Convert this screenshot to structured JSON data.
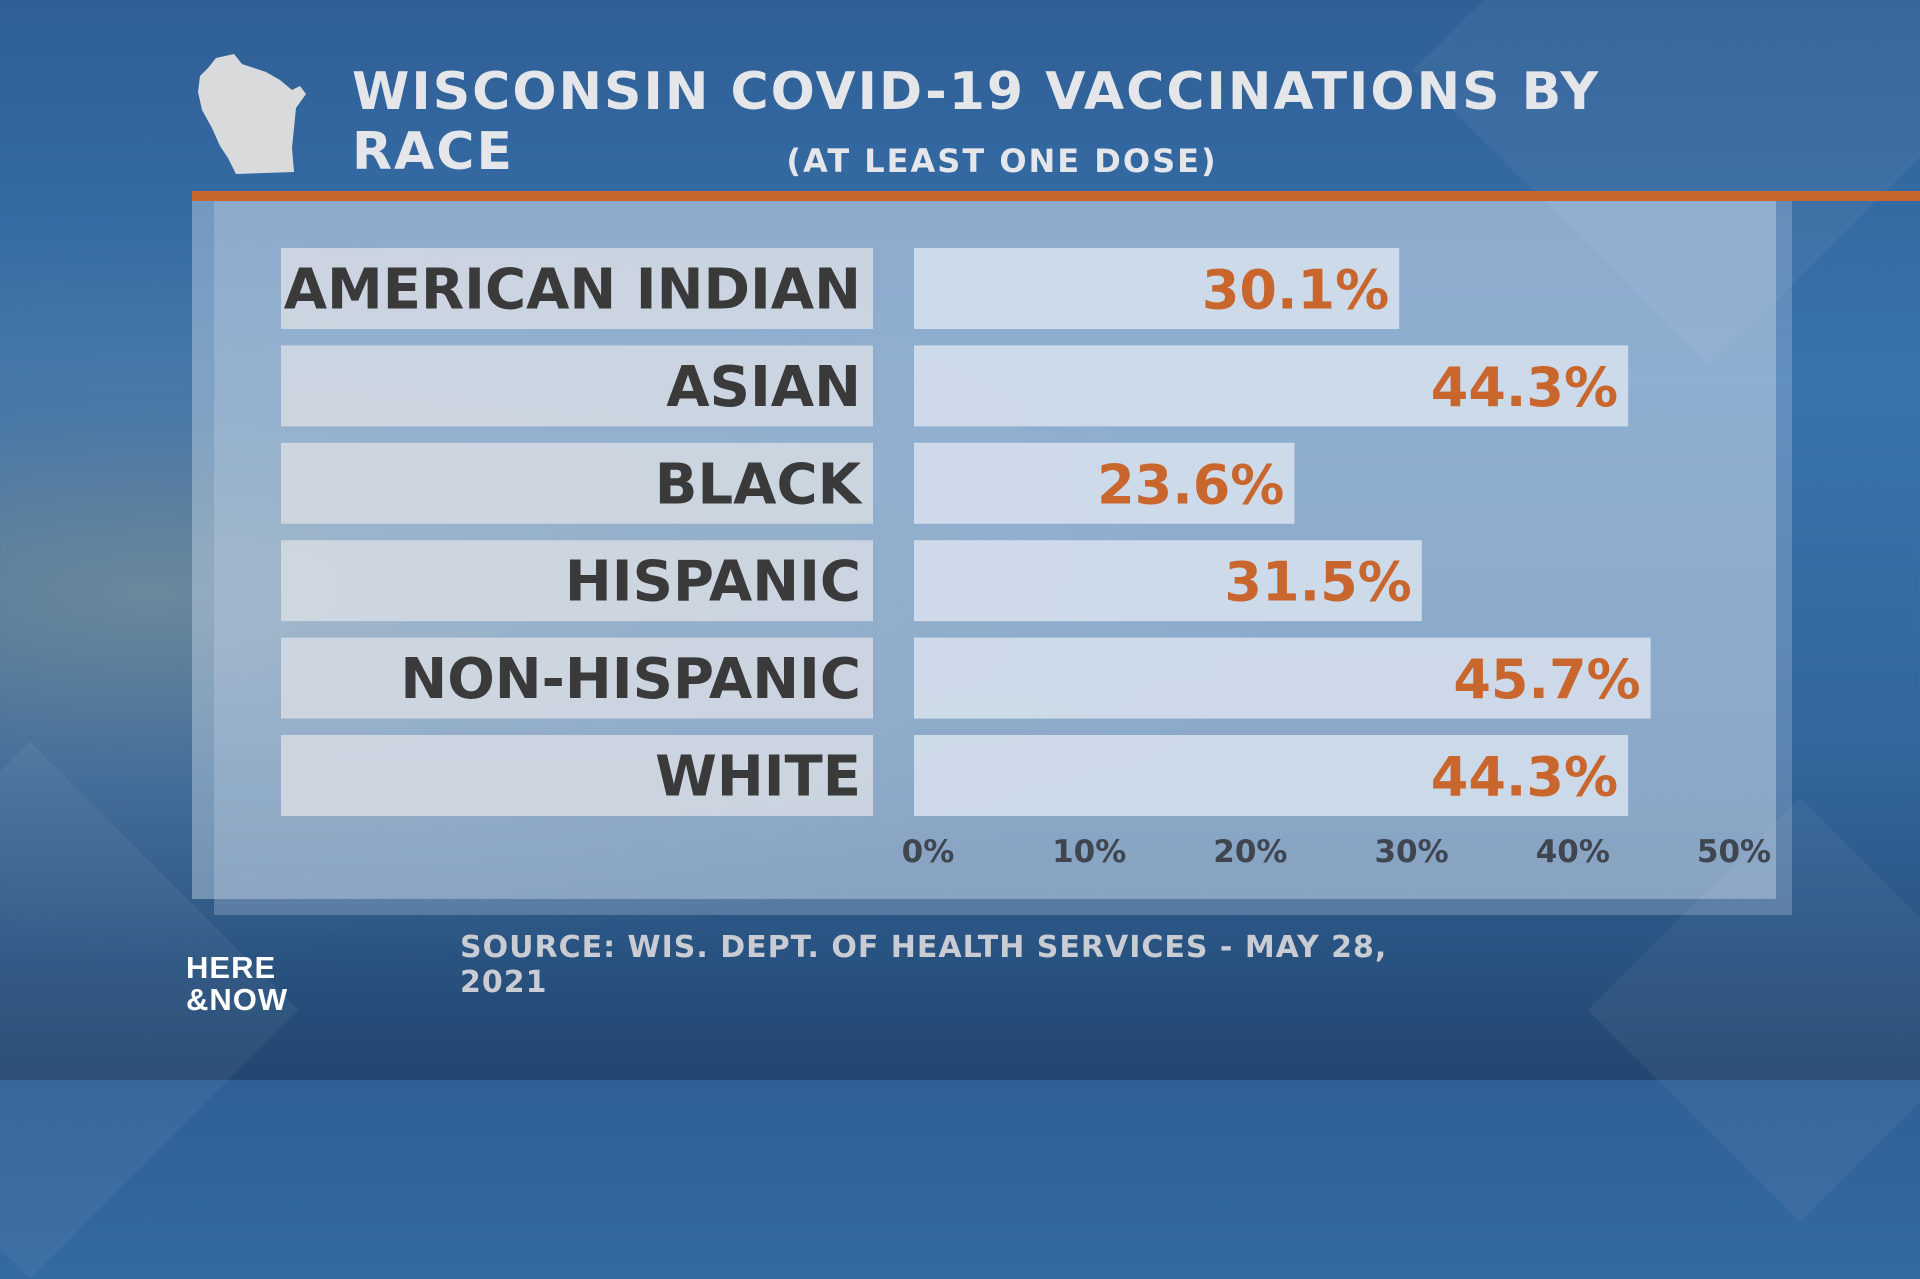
{
  "header": {
    "title": "WISCONSIN COVID-19 VACCINATIONS BY RACE",
    "subtitle": "(AT LEAST ONE DOSE)",
    "map_icon": "wisconsin-state-icon"
  },
  "footer": {
    "source": "SOURCE: WIS. DEPT. OF HEALTH SERVICES - MAY 28, 2021",
    "logo_line1": "HERE",
    "logo_line2": "&NOW"
  },
  "colors": {
    "accent_orange": "#c8662d",
    "label_text": "#3a3a3a",
    "bar_fill": "#dfe7f1",
    "label_box": "#d8dde4",
    "axis_text": "#3f4650"
  },
  "chart_data": {
    "type": "bar",
    "orientation": "horizontal",
    "categories": [
      "AMERICAN INDIAN",
      "ASIAN",
      "BLACK",
      "HISPANIC",
      "NON-HISPANIC",
      "WHITE"
    ],
    "values": [
      30.1,
      44.3,
      23.6,
      31.5,
      45.7,
      44.3
    ],
    "value_labels": [
      "30.1%",
      "44.3%",
      "23.6%",
      "31.5%",
      "45.7%",
      "44.3%"
    ],
    "x_ticks": [
      "0%",
      "10%",
      "20%",
      "30%",
      "40%",
      "50%"
    ],
    "xlim": [
      0,
      50
    ],
    "grid": false,
    "legend": "none"
  }
}
